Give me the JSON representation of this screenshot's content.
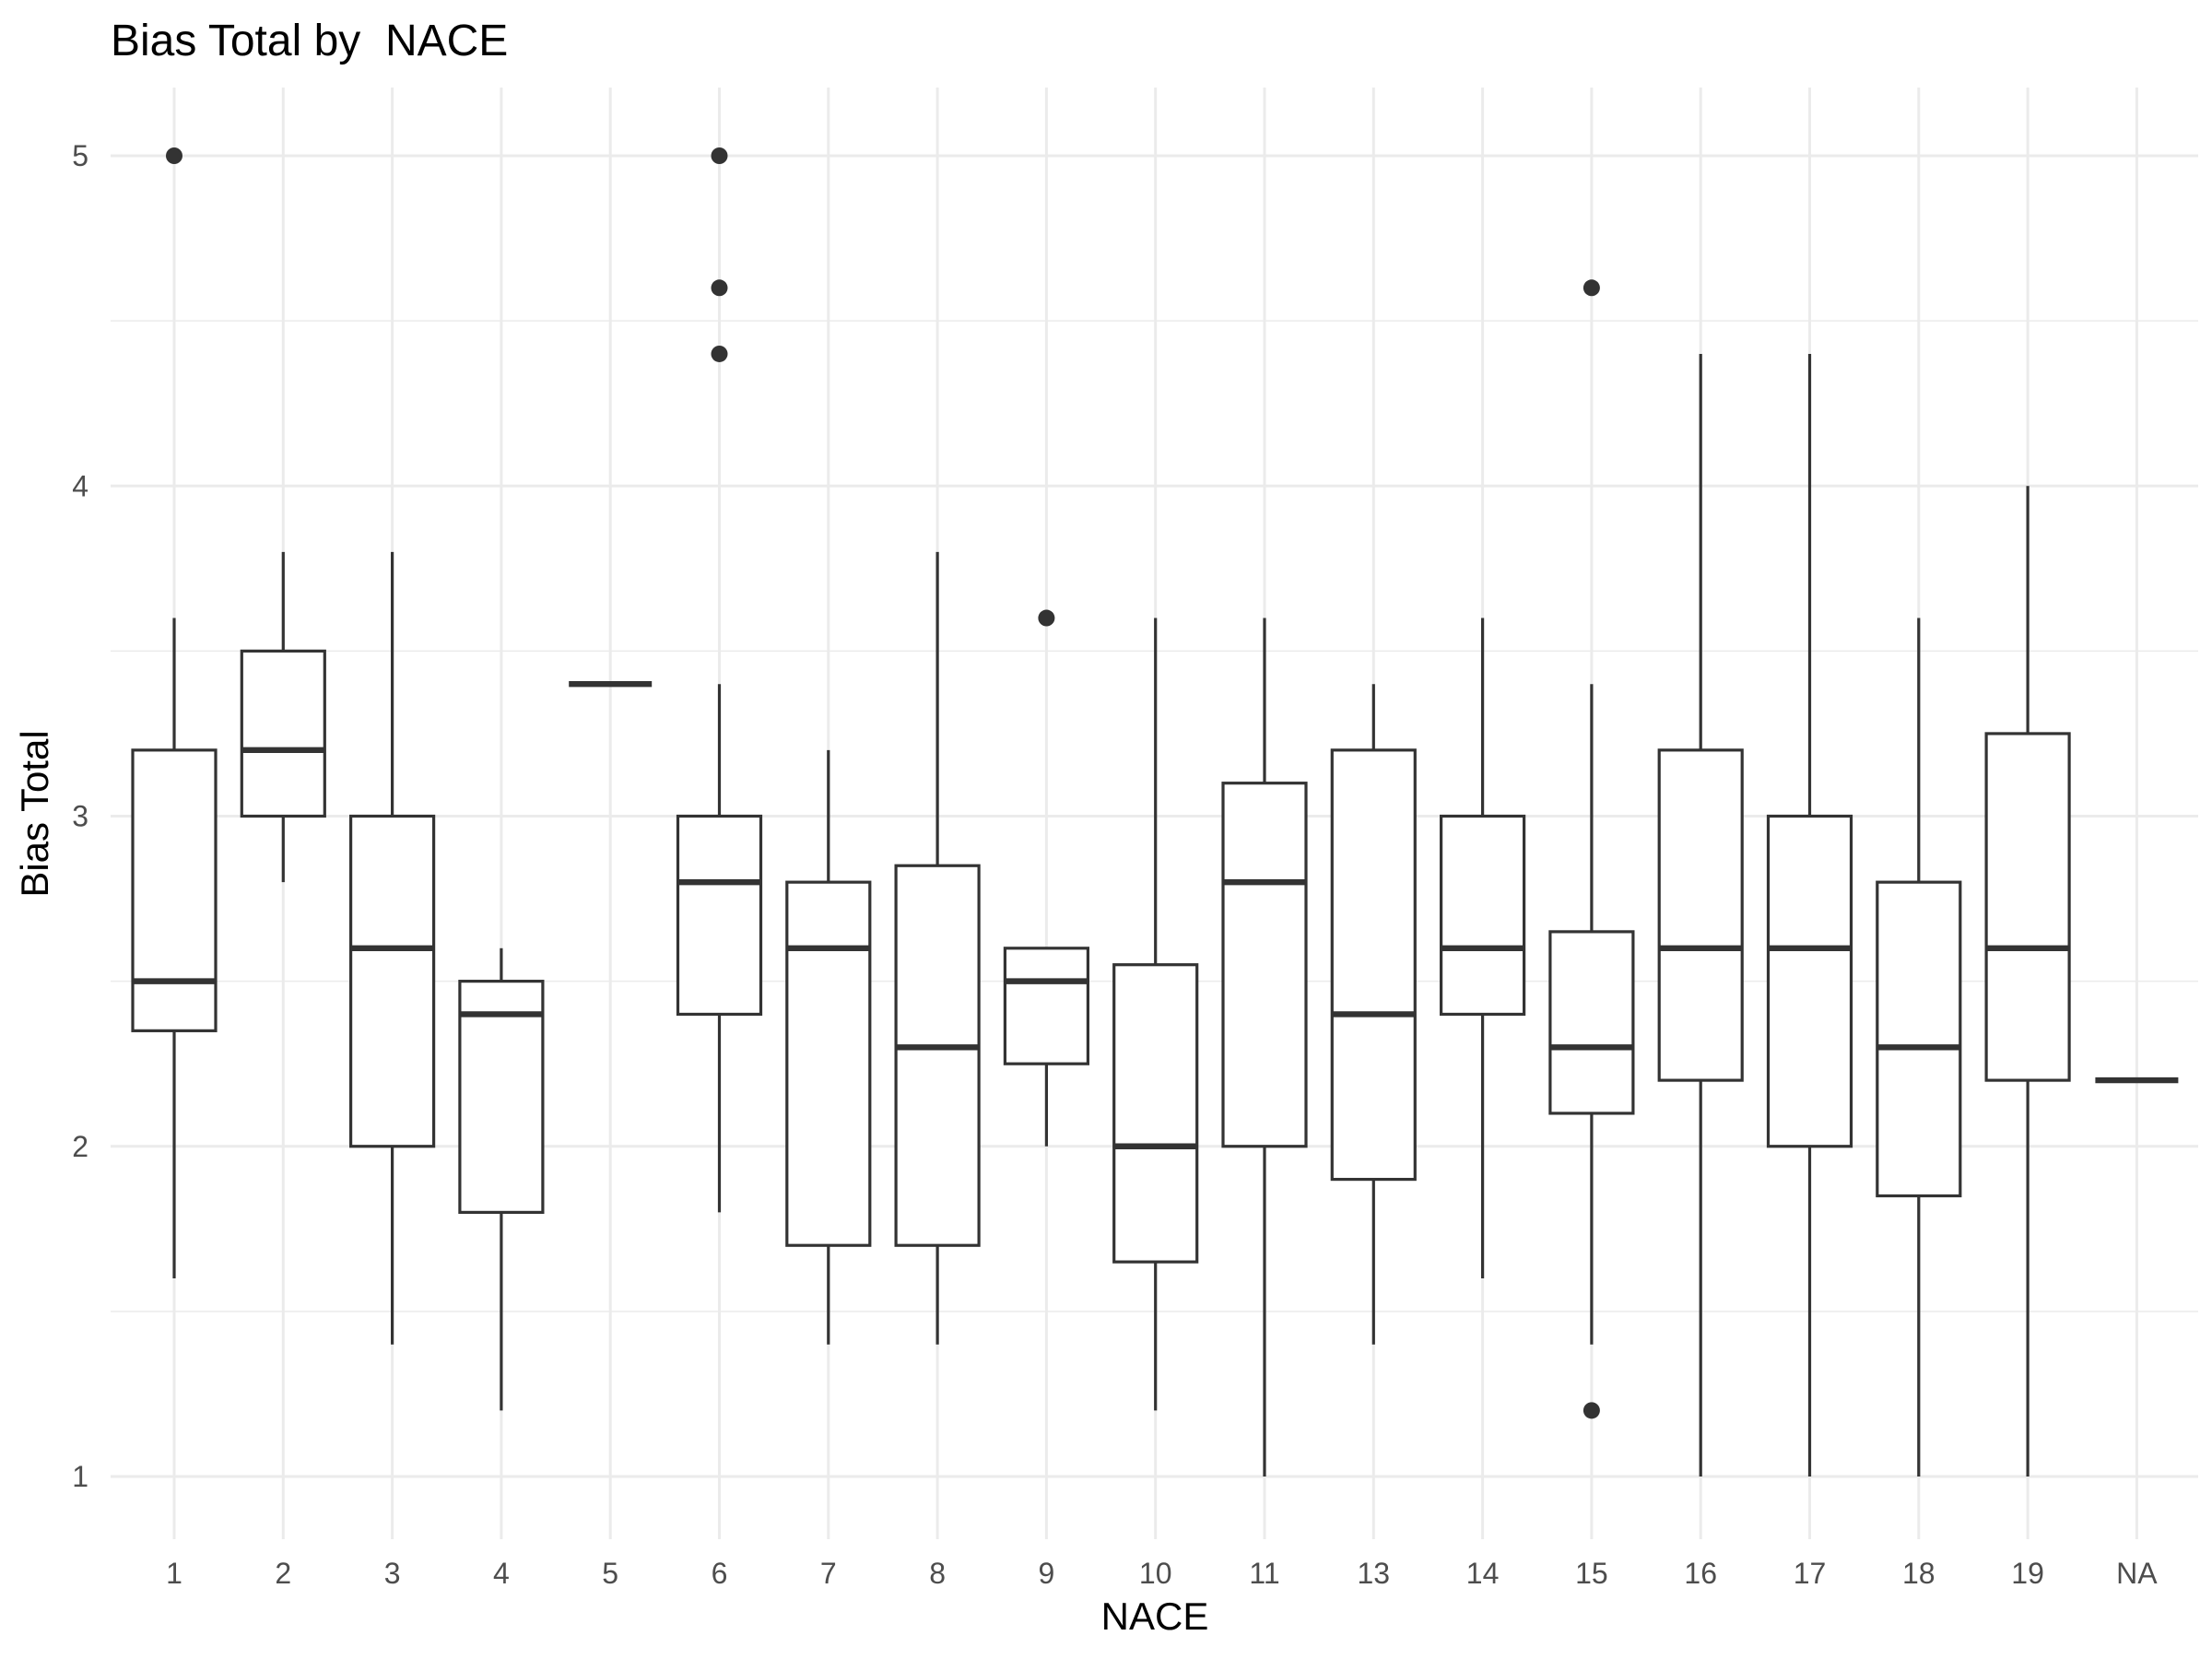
{
  "chart_data": {
    "type": "boxplot",
    "title": "Bias Total by  NACE",
    "xlabel": "NACE",
    "ylabel": "Bias Total",
    "ylim": [
      0.8,
      5.2
    ],
    "y_ticks": [
      1,
      2,
      3,
      4,
      5
    ],
    "grid": true,
    "colors": {
      "box_stroke": "#333333",
      "grid": "#ebebeb",
      "tick_text": "#4d4d4d"
    },
    "categories": [
      "1",
      "2",
      "3",
      "4",
      "5",
      "6",
      "7",
      "8",
      "9",
      "10",
      "11",
      "13",
      "14",
      "15",
      "16",
      "17",
      "18",
      "19",
      "NA"
    ],
    "boxes": [
      {
        "category": "1",
        "min": 1.6,
        "q1": 2.35,
        "median": 2.5,
        "q3": 3.2,
        "max": 3.6,
        "outliers": [
          5.0
        ]
      },
      {
        "category": "2",
        "min": 2.8,
        "q1": 3.0,
        "median": 3.2,
        "q3": 3.5,
        "max": 3.8,
        "outliers": []
      },
      {
        "category": "3",
        "min": 1.4,
        "q1": 2.0,
        "median": 2.6,
        "q3": 3.0,
        "max": 3.8,
        "outliers": []
      },
      {
        "category": "4",
        "min": 1.2,
        "q1": 1.8,
        "median": 2.4,
        "q3": 2.5,
        "max": 2.6,
        "outliers": []
      },
      {
        "category": "5",
        "min": 3.4,
        "q1": 3.4,
        "median": 3.4,
        "q3": 3.4,
        "max": 3.4,
        "outliers": []
      },
      {
        "category": "6",
        "min": 1.8,
        "q1": 2.4,
        "median": 2.8,
        "q3": 3.0,
        "max": 3.4,
        "outliers": [
          4.4,
          4.6,
          5.0
        ]
      },
      {
        "category": "7",
        "min": 1.4,
        "q1": 1.7,
        "median": 2.6,
        "q3": 2.8,
        "max": 3.2,
        "outliers": []
      },
      {
        "category": "8",
        "min": 1.4,
        "q1": 1.7,
        "median": 2.3,
        "q3": 2.85,
        "max": 3.8,
        "outliers": []
      },
      {
        "category": "9",
        "min": 2.0,
        "q1": 2.25,
        "median": 2.5,
        "q3": 2.6,
        "max": 2.6,
        "outliers": [
          3.6
        ]
      },
      {
        "category": "10",
        "min": 1.2,
        "q1": 1.65,
        "median": 2.0,
        "q3": 2.55,
        "max": 3.6,
        "outliers": []
      },
      {
        "category": "11",
        "min": 1.0,
        "q1": 2.0,
        "median": 2.8,
        "q3": 3.1,
        "max": 3.6,
        "outliers": []
      },
      {
        "category": "13",
        "min": 1.4,
        "q1": 1.9,
        "median": 2.4,
        "q3": 3.2,
        "max": 3.4,
        "outliers": []
      },
      {
        "category": "14",
        "min": 1.6,
        "q1": 2.4,
        "median": 2.6,
        "q3": 3.0,
        "max": 3.6,
        "outliers": []
      },
      {
        "category": "15",
        "min": 1.4,
        "q1": 2.1,
        "median": 2.3,
        "q3": 2.65,
        "max": 3.4,
        "outliers": [
          1.2,
          4.6
        ]
      },
      {
        "category": "16",
        "min": 1.0,
        "q1": 2.2,
        "median": 2.6,
        "q3": 3.2,
        "max": 4.4,
        "outliers": []
      },
      {
        "category": "17",
        "min": 1.0,
        "q1": 2.0,
        "median": 2.6,
        "q3": 3.0,
        "max": 4.4,
        "outliers": []
      },
      {
        "category": "18",
        "min": 1.0,
        "q1": 1.85,
        "median": 2.3,
        "q3": 2.8,
        "max": 3.6,
        "outliers": []
      },
      {
        "category": "19",
        "min": 1.0,
        "q1": 2.2,
        "median": 2.6,
        "q3": 3.25,
        "max": 4.0,
        "outliers": []
      },
      {
        "category": "NA",
        "min": 2.2,
        "q1": 2.2,
        "median": 2.2,
        "q3": 2.2,
        "max": 2.2,
        "outliers": []
      }
    ]
  }
}
